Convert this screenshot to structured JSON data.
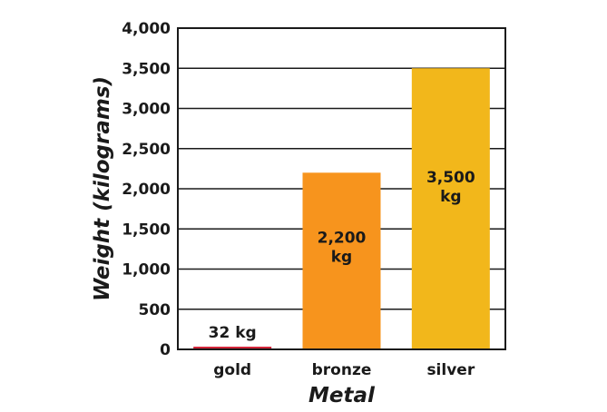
{
  "chart_data": {
    "type": "bar",
    "categories": [
      "gold",
      "bronze",
      "silver"
    ],
    "values": [
      32,
      2200,
      3500
    ],
    "colors": [
      "#d3263a",
      "#f7941d",
      "#f2b71b"
    ],
    "data_labels": [
      [
        "32 kg"
      ],
      [
        "2,200",
        "kg"
      ],
      [
        "3,500",
        "kg"
      ]
    ],
    "xlabel": "Metal",
    "ylabel": "Weight (kilograms)",
    "ylim": [
      0,
      4000
    ],
    "yticks": [
      0,
      500,
      1000,
      1500,
      2000,
      2500,
      3000,
      3500,
      4000
    ],
    "ytick_labels": [
      "0",
      "500",
      "1,000",
      "1,500",
      "2,000",
      "2,500",
      "3,000",
      "3,500",
      "4,000"
    ],
    "grid": true,
    "legend": "none"
  }
}
